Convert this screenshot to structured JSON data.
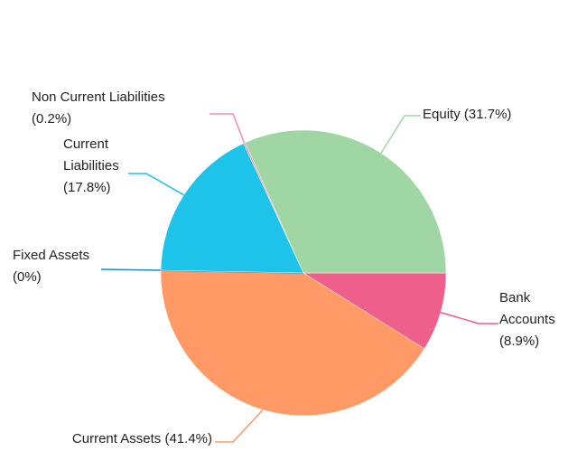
{
  "chart_data": {
    "type": "pie",
    "categories": [
      "Bank Accounts",
      "Current Assets",
      "Fixed Assets",
      "Current Liabilities",
      "Non Current Liabilities",
      "Equity"
    ],
    "values": [
      8.9,
      41.4,
      0,
      17.8,
      0.2,
      31.7
    ],
    "value_labels": [
      "(8.9%)",
      "(41.4%)",
      "(0%)",
      "(17.8%)",
      "(0.2%)",
      "(31.7%)"
    ],
    "colors": [
      "#ee5f8b",
      "#ff9966",
      "#1a8fd0",
      "#1dc3e8",
      "#f48fb1",
      "#a0d6a4"
    ]
  }
}
